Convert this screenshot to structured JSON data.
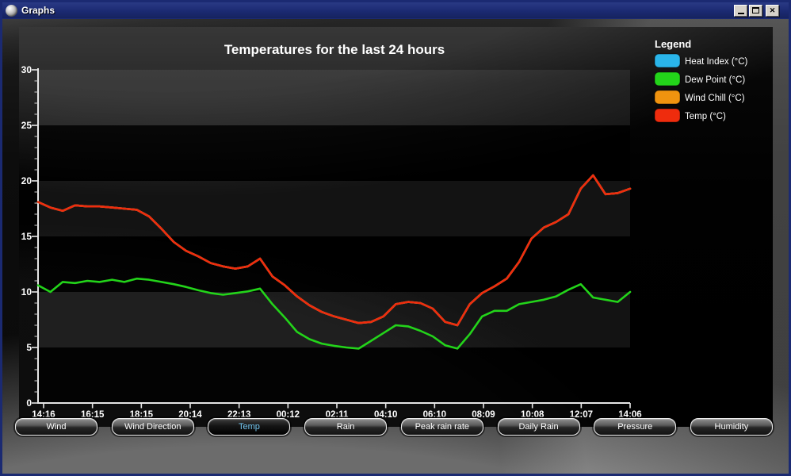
{
  "window": {
    "title": "Graphs",
    "controls": [
      {
        "name": "minimize"
      },
      {
        "name": "maximize"
      },
      {
        "name": "close"
      }
    ]
  },
  "icons": {
    "close_glyph": "✕"
  },
  "colors": {
    "titlebar": "#1b2a72",
    "panel_background": "#000000",
    "axis": "#e6e6e6",
    "selected_button_text": "#74c8f2",
    "button_border": "#ececec"
  },
  "chart_data": {
    "type": "line",
    "title": "Temperatures for the last 24 hours",
    "xlabel": "",
    "ylabel": "",
    "ylim": [
      0,
      30
    ],
    "y_ticks": [
      "0",
      "5",
      "10",
      "15",
      "20",
      "25",
      "30"
    ],
    "x_ticks": [
      "14:16",
      "16:15",
      "18:15",
      "20:14",
      "22:13",
      "00:12",
      "02:11",
      "04:10",
      "06:10",
      "08:09",
      "10:08",
      "12:07",
      "14:06"
    ],
    "grid": "horizontal-bands",
    "legend_position": "top-right",
    "legend_title": "Legend",
    "sampling": "approx. every 30 minutes over 24 h",
    "series": [
      {
        "name": "Heat Index (°C)",
        "color": "#2ab5ea",
        "note": "coincides with Temp, hidden beneath it",
        "values": [
          18.1,
          17.6,
          17.3,
          17.8,
          17.7,
          17.7,
          17.6,
          17.5,
          17.4,
          16.8,
          15.7,
          14.5,
          13.7,
          13.2,
          12.6,
          12.3,
          12.1,
          12.3,
          13.0,
          11.4,
          10.6,
          9.6,
          8.8,
          8.2,
          7.8,
          7.5,
          7.2,
          7.3,
          7.8,
          8.9,
          9.1,
          9.0,
          8.5,
          7.3,
          7.0,
          8.9,
          9.9,
          10.5,
          11.2,
          12.7,
          14.8,
          15.8,
          16.3,
          17.0,
          19.3,
          20.5,
          18.8,
          18.9,
          19.3
        ]
      },
      {
        "name": "Dew Point (°C)",
        "color": "#23d41a",
        "values": [
          10.6,
          10.0,
          10.9,
          10.8,
          11.0,
          10.9,
          11.1,
          10.9,
          11.2,
          11.1,
          10.9,
          10.7,
          10.45,
          10.15,
          9.9,
          9.75,
          9.9,
          10.05,
          10.3,
          8.9,
          7.7,
          6.4,
          5.75,
          5.35,
          5.15,
          5.0,
          4.9,
          5.6,
          6.3,
          7.0,
          6.9,
          6.5,
          6.0,
          5.2,
          4.9,
          6.2,
          7.8,
          8.3,
          8.3,
          8.9,
          9.1,
          9.3,
          9.6,
          10.2,
          10.7,
          9.5,
          9.3,
          9.1,
          10.0
        ]
      },
      {
        "name": "Wind Chill (°C)",
        "color": "#f0930f",
        "note": "coincides with Temp, hidden beneath it",
        "values": [
          18.1,
          17.6,
          17.3,
          17.8,
          17.7,
          17.7,
          17.6,
          17.5,
          17.4,
          16.8,
          15.7,
          14.5,
          13.7,
          13.2,
          12.6,
          12.3,
          12.1,
          12.3,
          13.0,
          11.4,
          10.6,
          9.6,
          8.8,
          8.2,
          7.8,
          7.5,
          7.2,
          7.3,
          7.8,
          8.9,
          9.1,
          9.0,
          8.5,
          7.3,
          7.0,
          8.9,
          9.9,
          10.5,
          11.2,
          12.7,
          14.8,
          15.8,
          16.3,
          17.0,
          19.3,
          20.5,
          18.8,
          18.9,
          19.3
        ]
      },
      {
        "name": "Temp (°C)",
        "color": "#ef2c0d",
        "values": [
          18.1,
          17.6,
          17.3,
          17.8,
          17.7,
          17.7,
          17.6,
          17.5,
          17.4,
          16.8,
          15.7,
          14.5,
          13.7,
          13.2,
          12.6,
          12.3,
          12.1,
          12.3,
          13.0,
          11.4,
          10.6,
          9.6,
          8.8,
          8.2,
          7.8,
          7.5,
          7.2,
          7.3,
          7.8,
          8.9,
          9.1,
          9.0,
          8.5,
          7.3,
          7.0,
          8.9,
          9.9,
          10.5,
          11.2,
          12.7,
          14.8,
          15.8,
          16.3,
          17.0,
          19.3,
          20.5,
          18.8,
          18.9,
          19.3
        ]
      }
    ]
  },
  "buttons": [
    {
      "label": "Wind",
      "selected": false
    },
    {
      "label": "Wind Direction",
      "selected": false
    },
    {
      "label": "Temp",
      "selected": true
    },
    {
      "label": "Rain",
      "selected": false
    },
    {
      "label": "Peak rain rate",
      "selected": false
    },
    {
      "label": "Daily Rain",
      "selected": false
    },
    {
      "label": "Pressure",
      "selected": false
    },
    {
      "label": "Humidity",
      "selected": false
    }
  ]
}
